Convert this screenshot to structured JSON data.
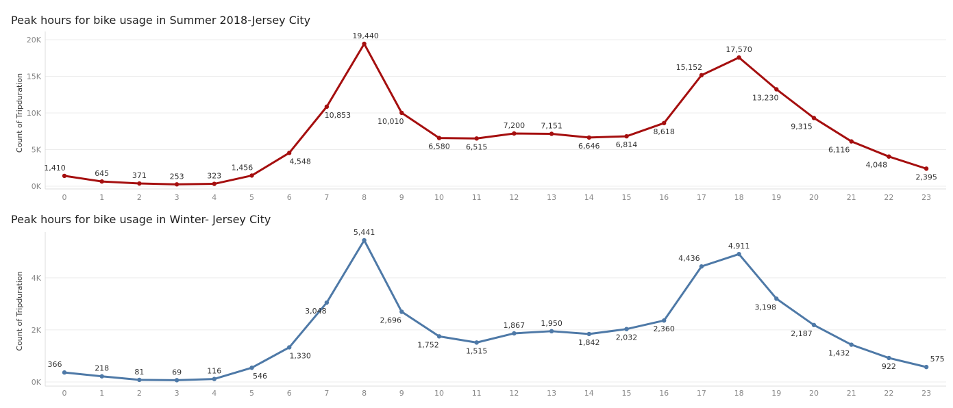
{
  "chart_data": [
    {
      "type": "line",
      "title": "Peak hours for bike usage  in Summer 2018-Jersey City",
      "ylabel": "Count of Tripduration",
      "xlabel": "",
      "categories": [
        "0",
        "1",
        "2",
        "3",
        "4",
        "5",
        "6",
        "7",
        "8",
        "9",
        "10",
        "11",
        "12",
        "13",
        "14",
        "15",
        "16",
        "17",
        "18",
        "19",
        "20",
        "21",
        "22",
        "23"
      ],
      "values": [
        1410,
        645,
        371,
        253,
        323,
        1456,
        4548,
        10853,
        19440,
        10010,
        6580,
        6515,
        7200,
        7151,
        6646,
        6814,
        8618,
        15152,
        17570,
        13230,
        9315,
        6116,
        4048,
        2395
      ],
      "data_labels": [
        "1,410",
        "645",
        "371",
        "253",
        "323",
        "1,456",
        "4,548",
        "10,853",
        "19,440",
        "10,010",
        "6,580",
        "6,515",
        "7,200",
        "7,151",
        "6,646",
        "6,814",
        "8,618",
        "15,152",
        "17,570",
        "13,230",
        "9,315",
        "6,116",
        "4,048",
        "2,395"
      ],
      "yticks": [
        0,
        5000,
        10000,
        15000,
        20000
      ],
      "ytick_labels": [
        "0K",
        "5K",
        "10K",
        "15K",
        "20K"
      ],
      "ylim": [
        0,
        20000
      ],
      "color": "#a50f0f",
      "grid": true
    },
    {
      "type": "line",
      "title": "Peak hours for bike usage in Winter- Jersey City",
      "ylabel": "Count of Tripduration",
      "xlabel": "",
      "categories": [
        "0",
        "1",
        "2",
        "3",
        "4",
        "5",
        "6",
        "7",
        "8",
        "9",
        "10",
        "11",
        "12",
        "13",
        "14",
        "15",
        "16",
        "17",
        "18",
        "19",
        "20",
        "21",
        "22",
        "23"
      ],
      "values": [
        366,
        218,
        81,
        69,
        116,
        546,
        1330,
        3048,
        5441,
        2696,
        1752,
        1515,
        1867,
        1950,
        1842,
        2032,
        2360,
        4436,
        4911,
        3198,
        2187,
        1432,
        922,
        575
      ],
      "data_labels": [
        "366",
        "218",
        "81",
        "69",
        "116",
        "546",
        "1,330",
        "3,048",
        "5,441",
        "2,696",
        "1,752",
        "1,515",
        "1,867",
        "1,950",
        "1,842",
        "2,032",
        "2,360",
        "4,436",
        "4,911",
        "3,198",
        "2,187",
        "1,432",
        "922",
        "575"
      ],
      "yticks": [
        0,
        2000,
        4000
      ],
      "ytick_labels": [
        "0K",
        "2K",
        "4K"
      ],
      "ylim": [
        0,
        5441
      ],
      "color": "#4e79a7",
      "grid": true
    }
  ]
}
